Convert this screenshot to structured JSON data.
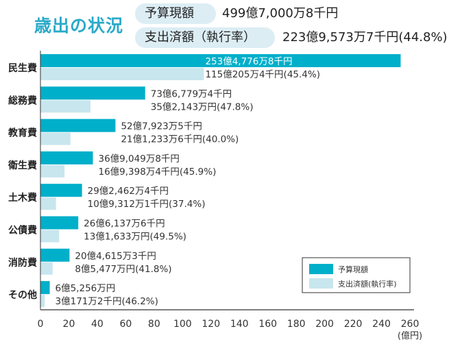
{
  "header": {
    "title": "歳出の状況",
    "budget_label": "予算現額",
    "budget_value": "499億7,000万8千円",
    "spent_label": "支出済額（執行率）",
    "spent_value": "223億9,573万7千円(44.8%)"
  },
  "colors": {
    "budget": "#00afca",
    "spent": "#c8e6ee",
    "title": "#2aaac8"
  },
  "chart_data": {
    "type": "bar",
    "orientation": "horizontal",
    "title": "歳出の状況",
    "xlabel": "(億円)",
    "ylabel": "",
    "xlim": [
      0,
      260
    ],
    "xticks": [
      0,
      20,
      40,
      60,
      80,
      100,
      120,
      140,
      160,
      180,
      200,
      220,
      240,
      260
    ],
    "grid": false,
    "legend_position": "bottom-right",
    "categories": [
      "民生費",
      "総務費",
      "教育費",
      "衛生費",
      "土木費",
      "公債費",
      "消防費",
      "その他"
    ],
    "series": [
      {
        "name": "予算現額",
        "values": [
          253.4778,
          73.6779,
          52.7924,
          36.905,
          29.2462,
          26.6138,
          20.4615,
          6.5256
        ]
      },
      {
        "name": "支出済額(執行率)",
        "values": [
          115.0205,
          35.2143,
          21.1234,
          16.9398,
          10.9312,
          13.1633,
          8.5477,
          3.0171
        ]
      }
    ],
    "budget_labels": [
      "253億4,776万8千円",
      "73億6,779万4千円",
      "52億7,923万5千円",
      "36億9,049万8千円",
      "29億2,462万4千円",
      "26億6,137万6千円",
      "20億4,615万3千円",
      "6億5,256万円"
    ],
    "spent_labels": [
      "115億205万4千円(45.4%)",
      "35億2,143万円(47.8%)",
      "21億1,233万6千円(40.0%)",
      "16億9,398万4千円(45.9%)",
      "10億9,312万1千円(37.4%)",
      "13億1,633万円(49.5%)",
      "8億5,477万円(41.8%)",
      "3億171万2千円(46.2%)"
    ],
    "execution_rates": [
      45.4,
      47.8,
      40.0,
      45.9,
      37.4,
      49.5,
      41.8,
      46.2
    ]
  }
}
